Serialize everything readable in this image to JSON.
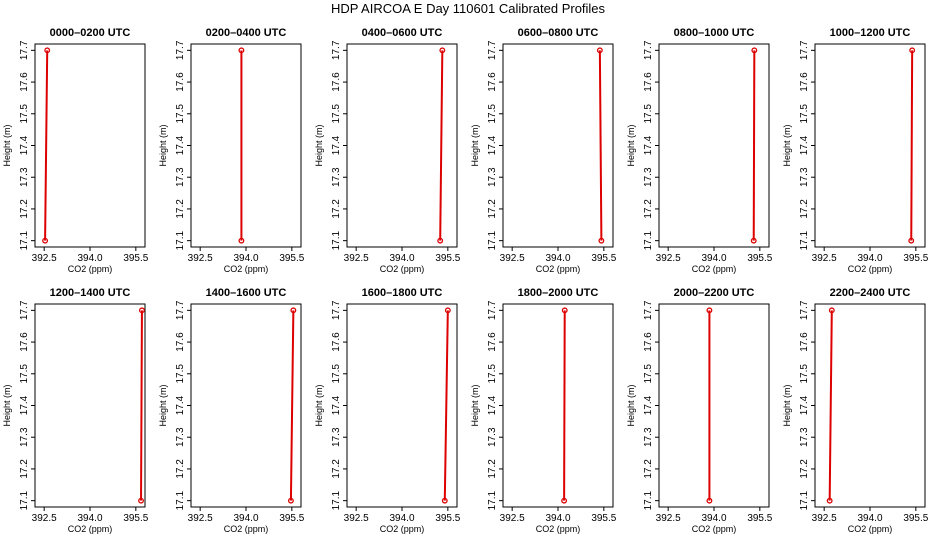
{
  "page": {
    "title": "HDP AIRCOA E  Day 110601  Calibrated Profiles",
    "bg": "#ffffff"
  },
  "style": {
    "line_color": "#dd0000",
    "axis_color": "#000000"
  },
  "chart_data": [
    {
      "type": "line",
      "title": "0000–0200 UTC",
      "xlabel": "CO2 (ppm)",
      "ylabel": "Height (m)",
      "xlim": [
        392.2,
        395.8
      ],
      "ylim": [
        17.08,
        17.72
      ],
      "xticks": [
        392.5,
        394.0,
        395.5
      ],
      "yticks": [
        17.1,
        17.2,
        17.3,
        17.4,
        17.5,
        17.6,
        17.7
      ],
      "x": [
        392.53,
        392.6
      ],
      "y": [
        17.1,
        17.7
      ]
    },
    {
      "type": "line",
      "title": "0200–0400 UTC",
      "xlabel": "CO2 (ppm)",
      "ylabel": "Height (m)",
      "xlim": [
        392.2,
        395.8
      ],
      "ylim": [
        17.08,
        17.72
      ],
      "xticks": [
        392.5,
        394.0,
        395.5
      ],
      "yticks": [
        17.1,
        17.2,
        17.3,
        17.4,
        17.5,
        17.6,
        17.7
      ],
      "x": [
        393.85,
        393.85
      ],
      "y": [
        17.1,
        17.7
      ]
    },
    {
      "type": "line",
      "title": "0400–0600 UTC",
      "xlabel": "CO2 (ppm)",
      "ylabel": "Height (m)",
      "xlim": [
        392.2,
        395.8
      ],
      "ylim": [
        17.08,
        17.72
      ],
      "xticks": [
        392.5,
        394.0,
        395.5
      ],
      "yticks": [
        17.1,
        17.2,
        17.3,
        17.4,
        17.5,
        17.6,
        17.7
      ],
      "x": [
        395.25,
        395.32
      ],
      "y": [
        17.1,
        17.7
      ]
    },
    {
      "type": "line",
      "title": "0600–0800 UTC",
      "xlabel": "CO2 (ppm)",
      "ylabel": "Height (m)",
      "xlim": [
        392.2,
        395.8
      ],
      "ylim": [
        17.08,
        17.72
      ],
      "xticks": [
        392.5,
        394.0,
        395.5
      ],
      "yticks": [
        17.1,
        17.2,
        17.3,
        17.4,
        17.5,
        17.6,
        17.7
      ],
      "x": [
        395.42,
        395.37
      ],
      "y": [
        17.1,
        17.7
      ]
    },
    {
      "type": "line",
      "title": "0800–1000 UTC",
      "xlabel": "CO2 (ppm)",
      "ylabel": "Height (m)",
      "xlim": [
        392.2,
        395.8
      ],
      "ylim": [
        17.08,
        17.72
      ],
      "xticks": [
        392.5,
        394.0,
        395.5
      ],
      "yticks": [
        17.1,
        17.2,
        17.3,
        17.4,
        17.5,
        17.6,
        17.7
      ],
      "x": [
        395.3,
        395.32
      ],
      "y": [
        17.1,
        17.7
      ]
    },
    {
      "type": "line",
      "title": "1000–1200 UTC",
      "xlabel": "CO2 (ppm)",
      "ylabel": "Height (m)",
      "xlim": [
        392.2,
        395.8
      ],
      "ylim": [
        17.08,
        17.72
      ],
      "xticks": [
        392.5,
        394.0,
        395.5
      ],
      "yticks": [
        17.1,
        17.2,
        17.3,
        17.4,
        17.5,
        17.6,
        17.7
      ],
      "x": [
        395.35,
        395.38
      ],
      "y": [
        17.1,
        17.7
      ]
    },
    {
      "type": "line",
      "title": "1200–1400 UTC",
      "xlabel": "CO2 (ppm)",
      "ylabel": "Height (m)",
      "xlim": [
        392.2,
        395.8
      ],
      "ylim": [
        17.08,
        17.72
      ],
      "xticks": [
        392.5,
        394.0,
        395.5
      ],
      "yticks": [
        17.1,
        17.2,
        17.3,
        17.4,
        17.5,
        17.6,
        17.7
      ],
      "x": [
        395.67,
        395.7
      ],
      "y": [
        17.1,
        17.7
      ]
    },
    {
      "type": "line",
      "title": "1400–1600 UTC",
      "xlabel": "CO2 (ppm)",
      "ylabel": "Height (m)",
      "xlim": [
        392.2,
        395.8
      ],
      "ylim": [
        17.08,
        17.72
      ],
      "xticks": [
        392.5,
        394.0,
        395.5
      ],
      "yticks": [
        17.1,
        17.2,
        17.3,
        17.4,
        17.5,
        17.6,
        17.7
      ],
      "x": [
        395.47,
        395.55
      ],
      "y": [
        17.1,
        17.7
      ]
    },
    {
      "type": "line",
      "title": "1600–1800 UTC",
      "xlabel": "CO2 (ppm)",
      "ylabel": "Height (m)",
      "xlim": [
        392.2,
        395.8
      ],
      "ylim": [
        17.08,
        17.72
      ],
      "xticks": [
        392.5,
        394.0,
        395.5
      ],
      "yticks": [
        17.1,
        17.2,
        17.3,
        17.4,
        17.5,
        17.6,
        17.7
      ],
      "x": [
        395.4,
        395.5
      ],
      "y": [
        17.1,
        17.7
      ]
    },
    {
      "type": "line",
      "title": "1800–2000 UTC",
      "xlabel": "CO2 (ppm)",
      "ylabel": "Height (m)",
      "xlim": [
        392.2,
        395.8
      ],
      "ylim": [
        17.08,
        17.72
      ],
      "xticks": [
        392.5,
        394.0,
        395.5
      ],
      "yticks": [
        17.1,
        17.2,
        17.3,
        17.4,
        17.5,
        17.6,
        17.7
      ],
      "x": [
        394.2,
        394.22
      ],
      "y": [
        17.1,
        17.7
      ]
    },
    {
      "type": "line",
      "title": "2000–2200 UTC",
      "xlabel": "CO2 (ppm)",
      "ylabel": "Height (m)",
      "xlim": [
        392.2,
        395.8
      ],
      "ylim": [
        17.08,
        17.72
      ],
      "xticks": [
        392.5,
        394.0,
        395.5
      ],
      "yticks": [
        17.1,
        17.2,
        17.3,
        17.4,
        17.5,
        17.6,
        17.7
      ],
      "x": [
        393.85,
        393.85
      ],
      "y": [
        17.1,
        17.7
      ]
    },
    {
      "type": "line",
      "title": "2200–2400 UTC",
      "xlabel": "CO2 (ppm)",
      "ylabel": "Height (m)",
      "xlim": [
        392.2,
        395.8
      ],
      "ylim": [
        17.08,
        17.72
      ],
      "xticks": [
        392.5,
        394.0,
        395.5
      ],
      "yticks": [
        17.1,
        17.2,
        17.3,
        17.4,
        17.5,
        17.6,
        17.7
      ],
      "x": [
        392.68,
        392.75
      ],
      "y": [
        17.1,
        17.7
      ]
    }
  ]
}
